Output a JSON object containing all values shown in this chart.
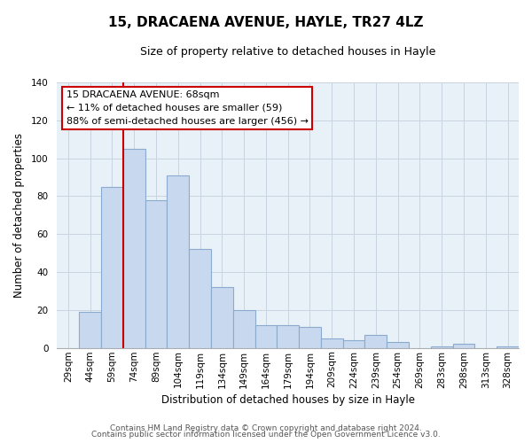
{
  "title": "15, DRACAENA AVENUE, HAYLE, TR27 4LZ",
  "subtitle": "Size of property relative to detached houses in Hayle",
  "xlabel": "Distribution of detached houses by size in Hayle",
  "ylabel": "Number of detached properties",
  "bar_color": "#c8d8ee",
  "bar_edge_color": "#8aabce",
  "plot_bg_color": "#e8f0f8",
  "categories": [
    "29sqm",
    "44sqm",
    "59sqm",
    "74sqm",
    "89sqm",
    "104sqm",
    "119sqm",
    "134sqm",
    "149sqm",
    "164sqm",
    "179sqm",
    "194sqm",
    "209sqm",
    "224sqm",
    "239sqm",
    "254sqm",
    "269sqm",
    "283sqm",
    "298sqm",
    "313sqm",
    "328sqm"
  ],
  "values": [
    0,
    19,
    85,
    105,
    78,
    91,
    52,
    32,
    20,
    12,
    12,
    11,
    5,
    4,
    7,
    3,
    0,
    1,
    2,
    0,
    1
  ],
  "ylim": [
    0,
    140
  ],
  "yticks": [
    0,
    20,
    40,
    60,
    80,
    100,
    120,
    140
  ],
  "property_line_color": "#cc0000",
  "annotation_title": "15 DRACAENA AVENUE: 68sqm",
  "annotation_line1": "← 11% of detached houses are smaller (59)",
  "annotation_line2": "88% of semi-detached houses are larger (456) →",
  "annotation_box_color": "#ffffff",
  "annotation_box_edge": "#cc0000",
  "footer1": "Contains HM Land Registry data © Crown copyright and database right 2024.",
  "footer2": "Contains public sector information licensed under the Open Government Licence v3.0.",
  "background_color": "#ffffff",
  "grid_color": "#c8d4e0",
  "title_fontsize": 11,
  "subtitle_fontsize": 9,
  "axis_label_fontsize": 8.5,
  "tick_fontsize": 7.5,
  "footer_fontsize": 6.5
}
